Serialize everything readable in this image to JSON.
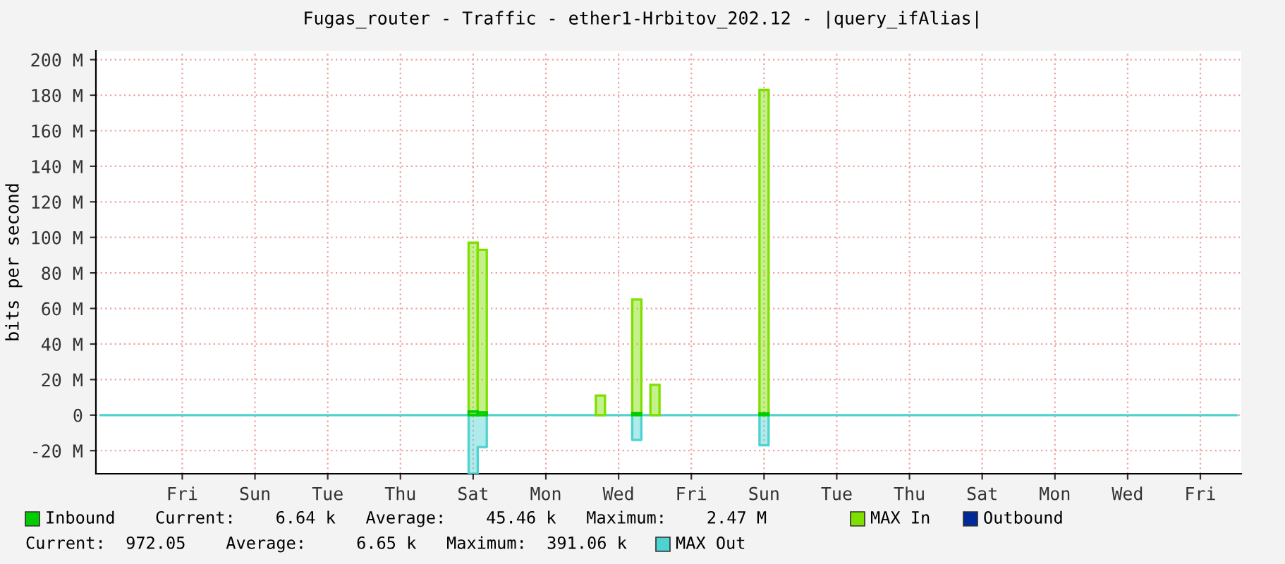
{
  "chart_data": {
    "type": "step",
    "title": "Fugas_router - Traffic - ether1-Hrbitov_202.12 - |query_ifAlias|",
    "ylabel": "bits per second",
    "categories": [
      null,
      null,
      null,
      null,
      null,
      null,
      null,
      null,
      null,
      "Fri",
      null,
      null,
      null,
      null,
      null,
      null,
      null,
      "Sun",
      null,
      null,
      null,
      null,
      null,
      null,
      null,
      "Tue",
      null,
      null,
      null,
      null,
      null,
      null,
      null,
      "Thu",
      null,
      null,
      null,
      null,
      null,
      null,
      null,
      "Sat",
      null,
      null,
      null,
      null,
      null,
      null,
      null,
      "Mon",
      null,
      null,
      null,
      null,
      null,
      null,
      null,
      "Wed",
      null,
      null,
      null,
      null,
      null,
      null,
      null,
      "Fri",
      null,
      null,
      null,
      null,
      null,
      null,
      null,
      "Sun",
      null,
      null,
      null,
      null,
      null,
      null,
      null,
      "Tue",
      null,
      null,
      null,
      null,
      null,
      null,
      null,
      "Thu",
      null,
      null,
      null,
      null,
      null,
      null,
      null,
      "Sat",
      null,
      null,
      null,
      null,
      null,
      null,
      null,
      "Mon",
      null,
      null,
      null,
      null,
      null,
      null,
      null,
      "Wed",
      null,
      null,
      null,
      null,
      null,
      null,
      null,
      "Fri",
      null,
      null,
      null,
      null
    ],
    "ylim": [
      -33,
      205
    ],
    "yticks": [
      {
        "value": -20,
        "label": "-20 M"
      },
      0,
      {
        "value": 20,
        "label": "20 M"
      },
      {
        "value": 40,
        "label": "40 M"
      },
      {
        "value": 60,
        "label": "60 M"
      },
      {
        "value": 80,
        "label": "80 M"
      },
      {
        "value": 100,
        "label": "100 M"
      },
      {
        "value": 120,
        "label": "120 M"
      },
      {
        "value": 140,
        "label": "140 M"
      },
      {
        "value": 160,
        "label": "160 M"
      },
      {
        "value": 180,
        "label": "180 M"
      },
      {
        "value": 200,
        "label": "200 M"
      }
    ],
    "grid": true,
    "legend": "bottom",
    "series": [
      {
        "name": "Inbound",
        "type": "bar",
        "color": "#00cc00",
        "values": [
          null,
          null,
          null,
          null,
          null,
          null,
          null,
          null,
          null,
          null,
          null,
          null,
          null,
          null,
          null,
          null,
          null,
          null,
          null,
          null,
          null,
          null,
          null,
          null,
          null,
          null,
          null,
          null,
          null,
          null,
          null,
          null,
          null,
          null,
          null,
          null,
          null,
          null,
          null,
          null,
          null,
          2,
          1.5,
          null,
          null,
          null,
          null,
          null,
          null,
          null,
          null,
          null,
          null,
          null,
          null,
          null,
          null,
          null,
          null,
          1.2,
          null,
          null,
          null,
          null,
          null,
          null,
          null,
          null,
          null,
          null,
          null,
          null,
          null,
          1,
          null,
          null,
          null,
          null,
          null,
          null,
          null,
          null,
          null,
          null,
          null,
          null,
          null,
          null,
          null,
          null,
          null,
          null,
          null,
          null,
          null,
          null,
          null,
          null,
          null,
          null,
          null,
          null,
          null,
          null,
          null,
          null,
          null,
          null,
          null,
          null,
          null,
          null,
          null,
          null,
          null,
          null,
          null,
          null,
          null,
          null,
          null,
          null,
          null,
          null,
          null,
          null
        ]
      },
      {
        "name": "MAX In",
        "type": "bar",
        "color": "#7fe000",
        "values": [
          null,
          null,
          null,
          null,
          null,
          null,
          null,
          null,
          null,
          null,
          null,
          null,
          null,
          null,
          null,
          null,
          null,
          null,
          null,
          null,
          null,
          null,
          null,
          null,
          null,
          null,
          null,
          null,
          null,
          null,
          null,
          null,
          null,
          null,
          null,
          null,
          null,
          null,
          null,
          null,
          null,
          97,
          93,
          null,
          null,
          null,
          null,
          null,
          null,
          null,
          null,
          null,
          null,
          null,
          null,
          11,
          null,
          null,
          null,
          65,
          null,
          17,
          null,
          null,
          null,
          null,
          null,
          null,
          null,
          null,
          null,
          null,
          null,
          183,
          null,
          null,
          null,
          null,
          null,
          null,
          null,
          null,
          null,
          null,
          null,
          null,
          null,
          null,
          null,
          null,
          null,
          null,
          null,
          null,
          null,
          null,
          null,
          null,
          null,
          null,
          null,
          null,
          null,
          null,
          null,
          null,
          null,
          null,
          null,
          null,
          null,
          null,
          null,
          null,
          null,
          null,
          null,
          null,
          null,
          null,
          null,
          null,
          null,
          null,
          null,
          null
        ]
      },
      {
        "name": "Outbound",
        "type": "bar",
        "color": "#002a97",
        "values": [
          null,
          null,
          null,
          null,
          null,
          null,
          null,
          null,
          null,
          null,
          null,
          null,
          null,
          null,
          null,
          null,
          null,
          null,
          null,
          null,
          null,
          null,
          null,
          null,
          null,
          null,
          null,
          null,
          null,
          null,
          null,
          null,
          null,
          null,
          null,
          null,
          null,
          null,
          null,
          null,
          null,
          null,
          null,
          null,
          null,
          null,
          null,
          null,
          null,
          null,
          null,
          null,
          null,
          null,
          null,
          null,
          null,
          null,
          null,
          null,
          null,
          null,
          null,
          null,
          null,
          null,
          null,
          null,
          null,
          null,
          null,
          null,
          null,
          null,
          null,
          null,
          null,
          null,
          null,
          null,
          null,
          null,
          null,
          null,
          null,
          null,
          null,
          null,
          null,
          null,
          null,
          null,
          null,
          null,
          null,
          null,
          null,
          null,
          null,
          null,
          null,
          null,
          null,
          null,
          null,
          null,
          null,
          null,
          null,
          null,
          null,
          null,
          null,
          null,
          null,
          null,
          null,
          null,
          null,
          null,
          null,
          null,
          null,
          null,
          null,
          null
        ]
      },
      {
        "name": "MAX Out",
        "color": "#4ed3d2",
        "values": [
          0,
          0,
          0,
          0,
          0,
          0,
          0,
          0,
          0,
          0,
          0,
          0,
          0,
          0,
          0,
          0,
          0,
          0,
          0,
          0,
          0,
          0,
          0,
          0,
          0,
          0,
          0,
          0,
          0,
          0,
          0,
          0,
          0,
          0,
          0,
          0,
          0,
          0,
          0,
          0,
          0,
          -33,
          -18,
          0,
          0,
          0,
          0,
          0,
          0,
          0,
          0,
          0,
          0,
          0,
          0,
          0,
          0,
          0,
          0,
          -14,
          0,
          0,
          0,
          0,
          0,
          0,
          0,
          0,
          0,
          0,
          0,
          0,
          0,
          -17,
          0,
          0,
          0,
          0,
          0,
          0,
          0,
          0,
          0,
          0,
          0,
          0,
          0,
          0,
          0,
          0,
          0,
          0,
          0,
          0,
          0,
          0,
          0,
          0,
          0,
          0,
          0,
          0,
          0,
          0,
          0,
          0,
          0,
          0,
          0,
          0,
          0,
          0,
          0,
          0,
          0,
          0,
          0,
          0,
          0,
          0,
          0,
          0,
          0,
          0,
          0,
          0
        ]
      }
    ],
    "annotations": [
      "Current:    6.64 k   Average:    45.46 k   Maximum:    2.47 M",
      "Current:  972.05    Average:     6.65 k   Maximum:  391.06 k"
    ]
  }
}
